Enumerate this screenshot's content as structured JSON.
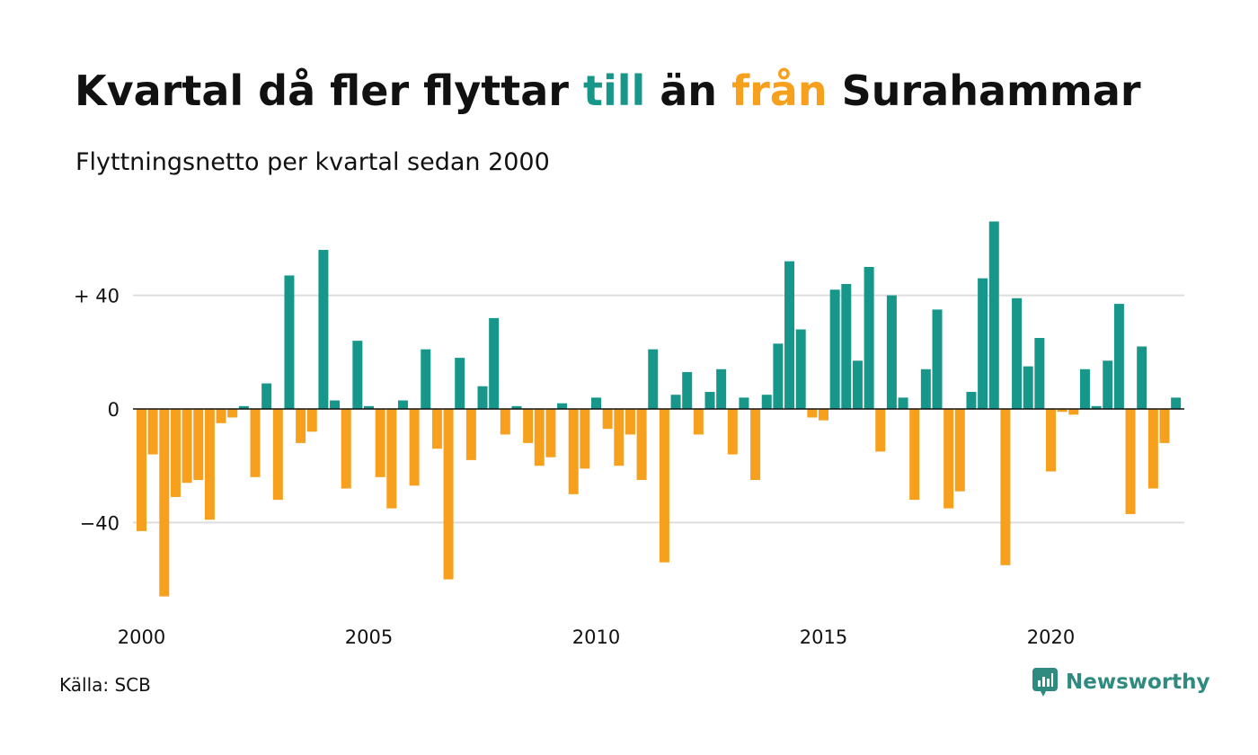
{
  "header": {
    "title_before": "Kvartal då fler flyttar ",
    "title_till": "till",
    "title_middle": " än ",
    "title_fran": "från",
    "title_after": " Surahammar",
    "subtitle": "Flyttningsnetto per kvartal sedan 2000"
  },
  "footer": {
    "source": "Källa: SCB",
    "brand": "Newsworthy",
    "brand_icon": "newsworthy-logo-icon"
  },
  "colors": {
    "positive": "#17978a",
    "negative": "#f6a01e",
    "grid": "#dddddd",
    "axis": "#111111"
  },
  "chart_data": {
    "type": "bar",
    "first_quarter": "2000 Q1",
    "x_tick_labels": [
      "2000",
      "2005",
      "2010",
      "2015",
      "2020"
    ],
    "y_tick_labels": [
      "+ 40",
      "0",
      "−40"
    ],
    "y_tick_values": [
      40,
      0,
      -40
    ],
    "ylim": [
      -70,
      68
    ],
    "grid": true,
    "legend": "none",
    "values": [
      -43,
      -16,
      -66,
      -31,
      -26,
      -25,
      -39,
      -5,
      -3,
      1,
      -24,
      9,
      -32,
      47,
      -12,
      -8,
      56,
      3,
      -28,
      24,
      1,
      -24,
      -35,
      3,
      -27,
      21,
      -14,
      -60,
      18,
      -18,
      8,
      32,
      -9,
      1,
      -12,
      -20,
      -17,
      2,
      -30,
      -21,
      4,
      -7,
      -20,
      -9,
      -25,
      21,
      -54,
      5,
      13,
      -9,
      6,
      14,
      -16,
      4,
      -25,
      5,
      23,
      52,
      28,
      -3,
      -4,
      42,
      44,
      17,
      50,
      -15,
      40,
      4,
      -32,
      14,
      35,
      -35,
      -29,
      6,
      46,
      66,
      -55,
      39,
      15,
      25,
      -22,
      -1,
      -2,
      14,
      1,
      17,
      37,
      -37,
      22,
      -28,
      -12,
      4
    ]
  }
}
